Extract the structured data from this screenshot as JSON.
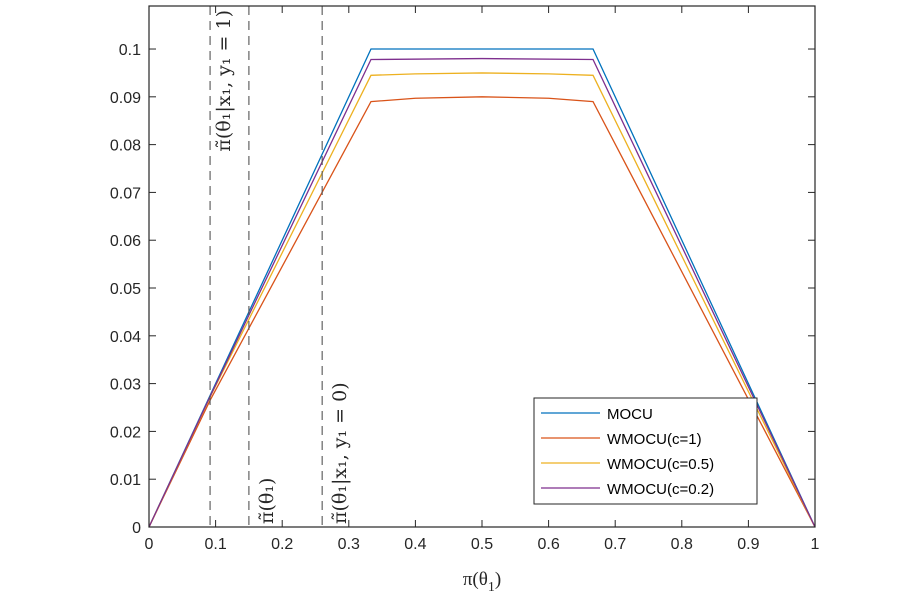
{
  "chart_data": {
    "type": "line",
    "title": "",
    "xlabel": "π(θ_1)",
    "ylabel": "",
    "xlim": [
      0,
      1
    ],
    "ylim": [
      0,
      0.109
    ],
    "grid": false,
    "xticks": [
      0,
      0.1,
      0.2,
      0.3,
      0.4,
      0.5,
      0.6,
      0.7,
      0.8,
      0.9,
      1
    ],
    "xtick_labels": [
      "0",
      "0.1",
      "0.2",
      "0.3",
      "0.4",
      "0.5",
      "0.6",
      "0.7",
      "0.8",
      "0.9",
      "1"
    ],
    "yticks": [
      0,
      0.01,
      0.02,
      0.03,
      0.04,
      0.05,
      0.06,
      0.07,
      0.08,
      0.09,
      0.1
    ],
    "ytick_labels": [
      "0",
      "0.01",
      "0.02",
      "0.03",
      "0.04",
      "0.05",
      "0.06",
      "0.07",
      "0.08",
      "0.09",
      "0.1"
    ],
    "legend": {
      "placement": "bottom-right"
    },
    "series": [
      {
        "name": "MOCU",
        "color": "#0072BD",
        "x": [
          0,
          0.3333,
          0.5,
          0.6667,
          1
        ],
        "y": [
          0,
          0.1,
          0.1,
          0.1,
          0
        ]
      },
      {
        "name": "WMOCU(c=1)",
        "color": "#D95319",
        "x": [
          0,
          0.0917,
          0.3333,
          0.4,
          0.5,
          0.6,
          0.6667,
          1
        ],
        "y": [
          0,
          0.0265,
          0.089,
          0.0897,
          0.09,
          0.0897,
          0.089,
          0
        ]
      },
      {
        "name": "WMOCU(c=0.5)",
        "color": "#EDB120",
        "x": [
          0,
          0.0917,
          0.3333,
          0.4,
          0.5,
          0.6,
          0.6667,
          1
        ],
        "y": [
          0,
          0.0272,
          0.0945,
          0.0948,
          0.095,
          0.0948,
          0.0945,
          0
        ]
      },
      {
        "name": "WMOCU(c=0.2)",
        "color": "#7E2F8E",
        "x": [
          0,
          0.0917,
          0.3333,
          0.5,
          0.6667,
          1
        ],
        "y": [
          0,
          0.0273,
          0.0978,
          0.098,
          0.0978,
          0
        ]
      }
    ],
    "vlines": [
      {
        "x": 0.0917,
        "label": "π̃(θ₁|x₁, y₁ = 1)",
        "label_position": "top"
      },
      {
        "x": 0.15,
        "label": "π̃(θ₁)",
        "label_position": "bottom"
      },
      {
        "x": 0.26,
        "label": "π̃(θ₁|x₁, y₁ = 0)",
        "label_position": "bottom"
      }
    ]
  }
}
